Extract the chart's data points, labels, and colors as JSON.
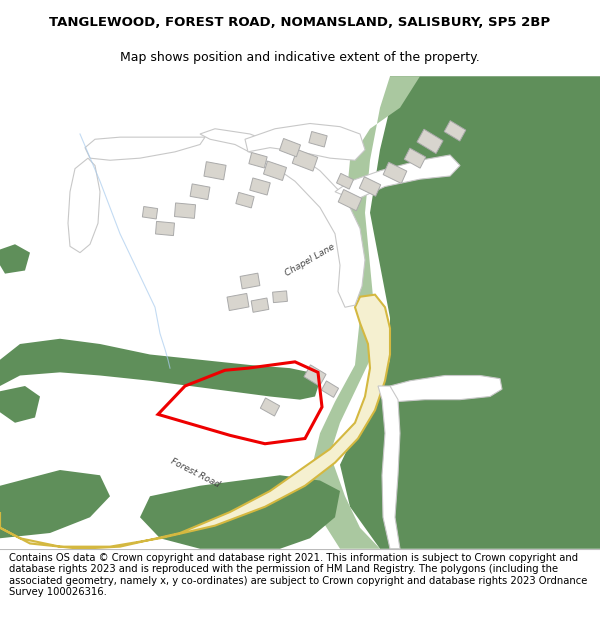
{
  "title_line1": "TANGLEWOOD, FOREST ROAD, NOMANSLAND, SALISBURY, SP5 2BP",
  "title_line2": "Map shows position and indicative extent of the property.",
  "footer_text": "Contains OS data © Crown copyright and database right 2021. This information is subject to Crown copyright and database rights 2023 and is reproduced with the permission of HM Land Registry. The polygons (including the associated geometry, namely x, y co-ordinates) are subject to Crown copyright and database rights 2023 Ordnance Survey 100026316.",
  "map_bg": "#f7f7f5",
  "green_dark": "#5f8f5a",
  "green_light": "#aac8a0",
  "road_fill": "#f5f0d0",
  "road_edge": "#d4b840",
  "white_road": "#ffffff",
  "road_outline": "#c8c8c8",
  "building_fill": "#d8d5ce",
  "building_edge": "#aaaaaa",
  "red_polygon": "#ee0000",
  "blue_line": "#aaccee",
  "title_fontsize": 9.5,
  "footer_fontsize": 7.2,
  "title_weight": "normal"
}
